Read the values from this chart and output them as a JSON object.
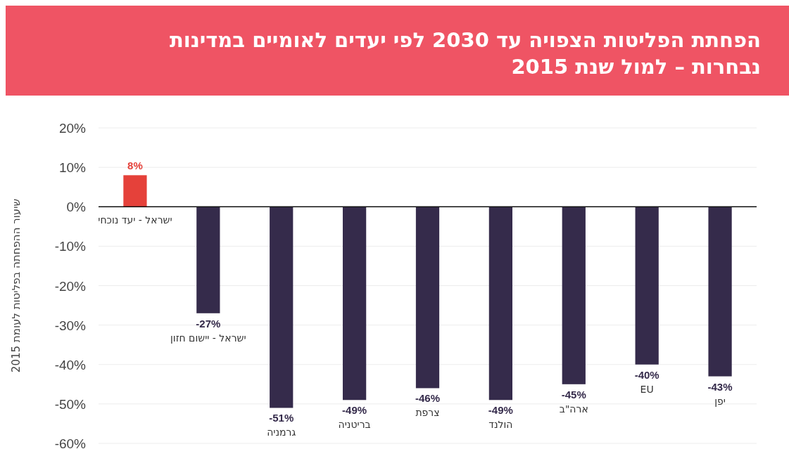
{
  "chart_data": {
    "type": "bar",
    "title": "הפחתת הפליטות הצפויה עד 2030 לפי יעדים לאומיים במדינות נבחרות – למול שנת 2015",
    "ylabel": "שיעור ההפחתה בפליטות לעומת 2015",
    "categories": [
      "ישראל - יעד נוכחי",
      "ישראל - יישום חזון",
      "גרמניה",
      "בריטניה",
      "צרפת",
      "הולנד",
      "ארה\"ב",
      "EU",
      "יפן"
    ],
    "values": [
      8,
      -27,
      -51,
      -49,
      -46,
      -49,
      -45,
      -40,
      -43
    ],
    "colors": [
      "#e5413a",
      "#352b4b",
      "#352b4b",
      "#352b4b",
      "#352b4b",
      "#352b4b",
      "#352b4b",
      "#352b4b",
      "#352b4b"
    ],
    "value_labels": [
      "8%",
      "-27%",
      "-51%",
      "-49%",
      "-46%",
      "-49%",
      "-45%",
      "-40%",
      "-43%"
    ],
    "ylim": [
      -60,
      20
    ],
    "yticks": [
      {
        "value": 20,
        "label": "20%"
      },
      {
        "value": 10,
        "label": "10%"
      },
      {
        "value": 0,
        "label": "0%"
      },
      {
        "value": -10,
        "label": "-10%"
      },
      {
        "value": -20,
        "label": "-20%"
      },
      {
        "value": -30,
        "label": "-30%"
      },
      {
        "value": -40,
        "label": "-40%"
      },
      {
        "value": -50,
        "label": "-50%"
      },
      {
        "value": -60,
        "label": "-60%"
      }
    ],
    "grid": "y"
  }
}
